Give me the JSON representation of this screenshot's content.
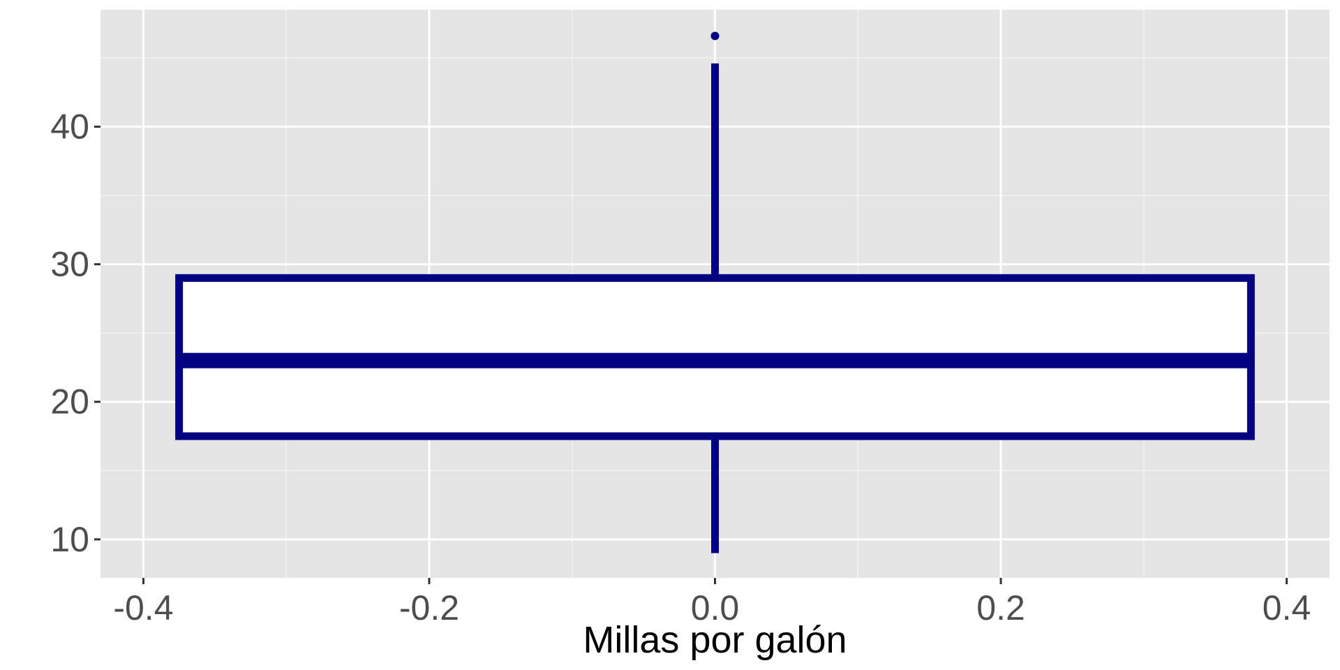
{
  "chart_data": {
    "type": "boxplot",
    "title": "",
    "xlabel": "Millas por galón",
    "ylabel": "",
    "xlim": [
      -0.43,
      0.43
    ],
    "ylim": [
      7.2,
      48.5
    ],
    "x_ticks": [
      -0.4,
      -0.2,
      0.0,
      0.2,
      0.4
    ],
    "x_tick_labels": [
      "-0.4",
      "-0.2",
      "0.0",
      "0.2",
      "0.4"
    ],
    "y_ticks": [
      10,
      20,
      30,
      40
    ],
    "y_tick_labels": [
      "10",
      "20",
      "30",
      "40"
    ],
    "grid": true,
    "colors": {
      "panel_background": "#e5e5e5",
      "grid_major": "#ffffff",
      "grid_minor": "#f2f2f2",
      "box_line": "#000080",
      "box_fill": "#ffffff",
      "outlier": "#000080"
    },
    "box": {
      "center": 0.0,
      "half_width": 0.375,
      "min": 9.0,
      "q1": 17.5,
      "median": 23.0,
      "q3": 29.0,
      "max": 44.6,
      "outliers": [
        46.6
      ]
    }
  }
}
